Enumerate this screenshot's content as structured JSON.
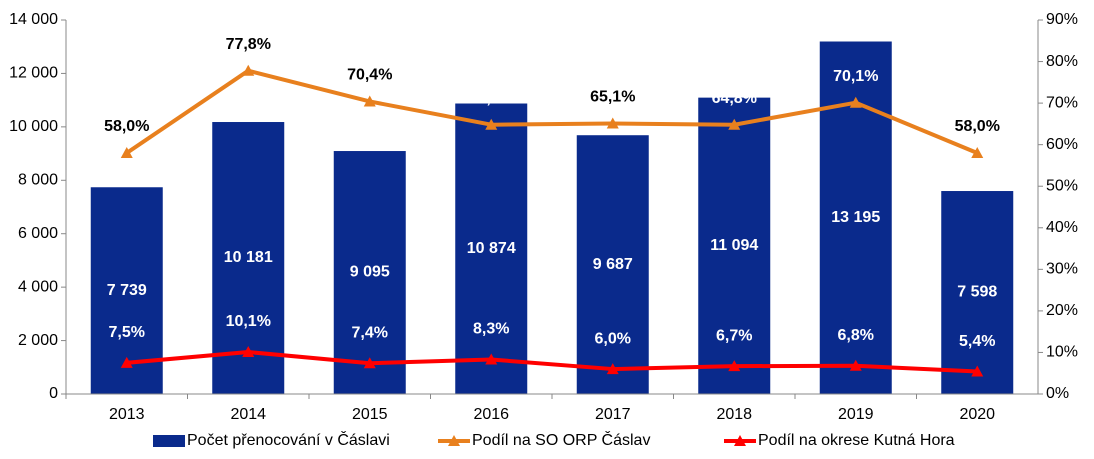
{
  "chart_data": {
    "type": "bar",
    "categories": [
      "2013",
      "2014",
      "2015",
      "2016",
      "2017",
      "2018",
      "2019",
      "2020"
    ],
    "series": [
      {
        "name": "Počet přenocování v Čáslavi",
        "type": "bar",
        "color": "#0a2a8c",
        "values": [
          7739,
          10181,
          9095,
          10874,
          9687,
          11094,
          13195,
          7598
        ],
        "value_labels": [
          "7 739",
          "10 181",
          "9 095",
          "10 874",
          "9 687",
          "11 094",
          "13 195",
          "7 598"
        ]
      },
      {
        "name": "Podíl na SO ORP Čáslav",
        "type": "line",
        "axis": "y2",
        "color": "#e8801e",
        "values": [
          58.0,
          77.8,
          70.4,
          64.8,
          65.1,
          64.8,
          70.1,
          58.0
        ],
        "value_labels": [
          "58,0%",
          "77,8%",
          "70,4%",
          "64,8%",
          "65,1%",
          "64,8%",
          "70,1%",
          "58,0%"
        ]
      },
      {
        "name": "Podíl na okrese Kutná Hora",
        "type": "line",
        "axis": "y2",
        "color": "#ff0000",
        "values": [
          7.5,
          10.1,
          7.4,
          8.3,
          6.0,
          6.7,
          6.8,
          5.4
        ],
        "value_labels": [
          "7,5%",
          "10,1%",
          "7,4%",
          "8,3%",
          "6,0%",
          "6,7%",
          "6,8%",
          "5,4%"
        ]
      }
    ],
    "ylim": [
      0,
      14000
    ],
    "yticks": [
      0,
      {
        "value": 2000,
        "label": "2 000"
      },
      {
        "value": 4000,
        "label": "4 000"
      },
      {
        "value": 6000,
        "label": "6 000"
      },
      {
        "value": 8000,
        "label": "8 000"
      },
      {
        "value": 10000,
        "label": "10 000"
      },
      {
        "value": 12000,
        "label": "12 000"
      },
      {
        "value": 14000,
        "label": "14 000"
      }
    ],
    "y2lim": [
      0,
      90
    ],
    "y2ticks": [
      {
        "value": 0,
        "label": "0%"
      },
      {
        "value": 10,
        "label": "10%"
      },
      {
        "value": 20,
        "label": "20%"
      },
      {
        "value": 30,
        "label": "30%"
      },
      {
        "value": 40,
        "label": "40%"
      },
      {
        "value": 50,
        "label": "50%"
      },
      {
        "value": 60,
        "label": "60%"
      },
      {
        "value": 70,
        "label": "70%"
      },
      {
        "value": 80,
        "label": "80%"
      },
      {
        "value": 90,
        "label": "90%"
      }
    ],
    "grid": false,
    "legend": "bottom"
  }
}
